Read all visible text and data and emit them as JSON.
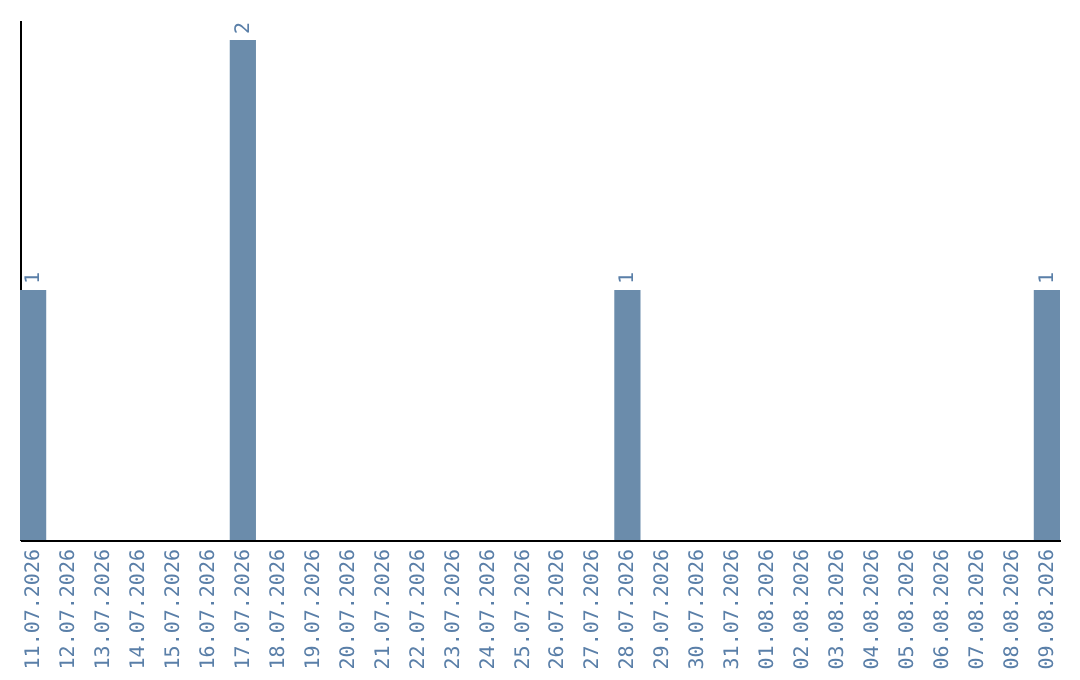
{
  "chart_data": {
    "type": "bar",
    "categories": [
      "11.07.2026",
      "12.07.2026",
      "13.07.2026",
      "14.07.2026",
      "15.07.2026",
      "16.07.2026",
      "17.07.2026",
      "18.07.2026",
      "19.07.2026",
      "20.07.2026",
      "21.07.2026",
      "22.07.2026",
      "23.07.2026",
      "24.07.2026",
      "25.07.2026",
      "26.07.2026",
      "27.07.2026",
      "28.07.2026",
      "29.07.2026",
      "30.07.2026",
      "31.07.2026",
      "01.08.2026",
      "02.08.2026",
      "03.08.2026",
      "04.08.2026",
      "05.08.2026",
      "06.08.2026",
      "07.08.2026",
      "08.08.2026",
      "09.08.2026"
    ],
    "values": [
      1,
      0,
      0,
      0,
      0,
      0,
      2,
      0,
      0,
      0,
      0,
      0,
      0,
      0,
      0,
      0,
      0,
      1,
      0,
      0,
      0,
      0,
      0,
      0,
      0,
      0,
      0,
      0,
      0,
      1
    ],
    "value_labels": [
      "1",
      null,
      null,
      null,
      null,
      null,
      "2",
      null,
      null,
      null,
      null,
      null,
      null,
      null,
      null,
      null,
      null,
      "1",
      null,
      null,
      null,
      null,
      null,
      null,
      null,
      null,
      null,
      null,
      null,
      "1"
    ],
    "color": "#6b8cab",
    "tick_labels": "x",
    "grid": false
  }
}
